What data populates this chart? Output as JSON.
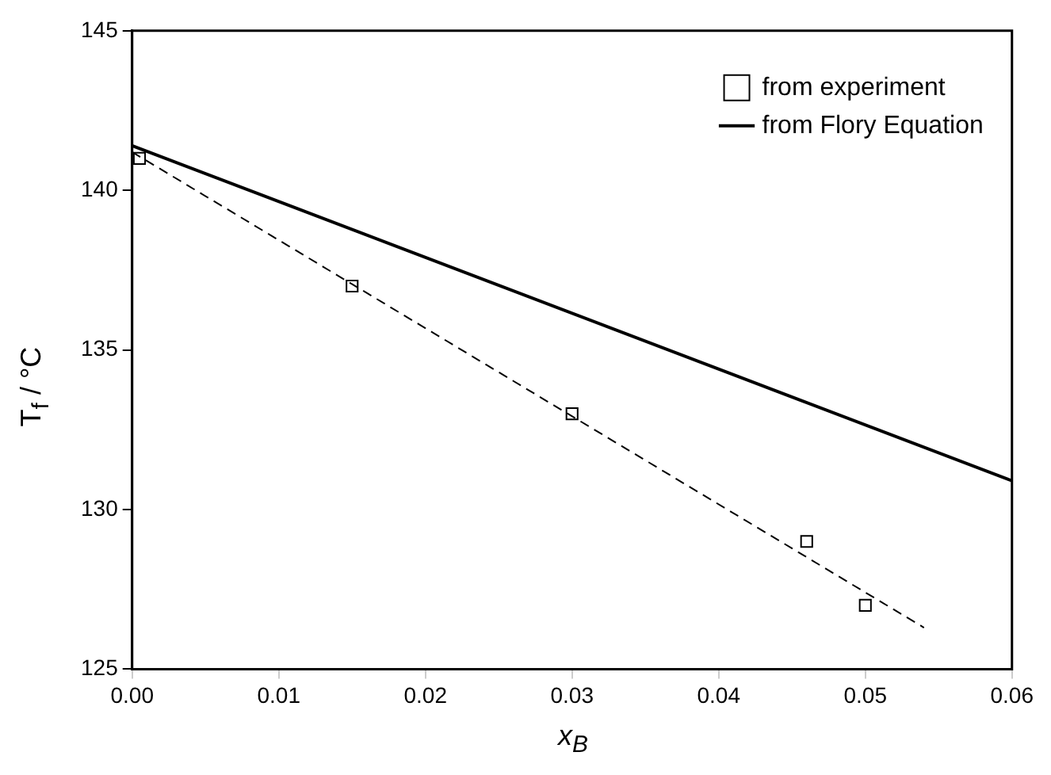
{
  "chart_data": {
    "type": "scatter",
    "xlabel": "x$_{B}$",
    "ylabel": "T$_{f}$  / °C",
    "xlim": [
      0,
      0.06
    ],
    "xticks": [
      {
        "value": 0,
        "label": "0.00"
      },
      {
        "value": 0.01,
        "label": "0.01"
      },
      {
        "value": 0.02,
        "label": "0.02"
      },
      {
        "value": 0.03,
        "label": "0.03"
      },
      {
        "value": 0.04,
        "label": "0.04"
      },
      {
        "value": 0.05,
        "label": "0.05"
      },
      {
        "value": 0.06,
        "label": "0.06"
      }
    ],
    "ylim": [
      125,
      145
    ],
    "yticks": [
      125,
      130,
      135,
      140,
      145
    ],
    "grid": false,
    "legend": "top right",
    "series": [
      {
        "name": "from experiment",
        "marker": "square",
        "color": "#000000",
        "x": [
          0.0005,
          0.015,
          0.03,
          0.046,
          0.05
        ],
        "values": [
          141,
          137,
          133,
          129,
          127
        ]
      },
      {
        "name": "from Flory Equation",
        "type": "line",
        "marker": "none",
        "line_style": "solid",
        "color": "#000000",
        "x": [
          0,
          0.06
        ],
        "values": [
          141.4,
          130.9
        ]
      },
      {
        "type": "line",
        "marker": "none",
        "line_style": "dashed",
        "color": "#000000",
        "x": [
          0,
          0.054
        ],
        "values": [
          141.2,
          126.3
        ]
      }
    ]
  }
}
